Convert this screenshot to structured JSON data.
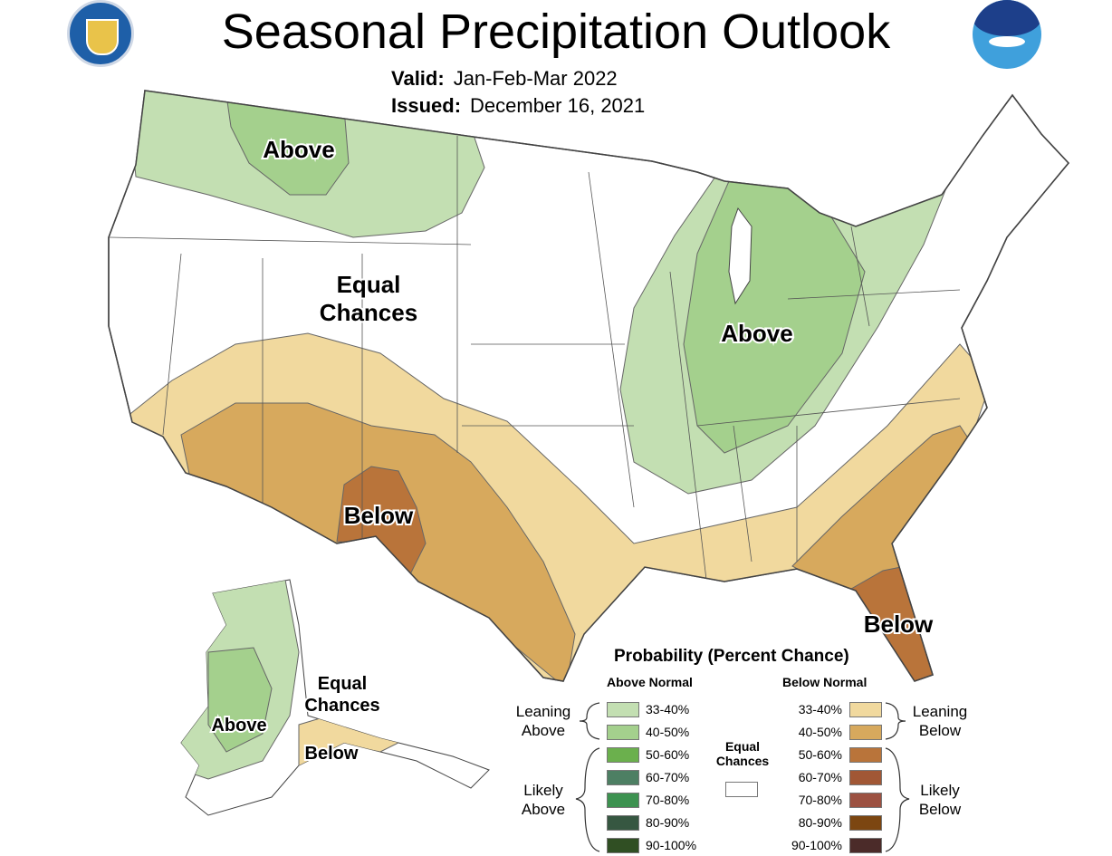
{
  "header": {
    "title": "Seasonal Precipitation Outlook",
    "valid_label": "Valid:",
    "valid_value": "Jan-Feb-Mar 2022",
    "issued_label": "Issued:",
    "issued_value": "December 16, 2021",
    "logos": [
      "Department of Commerce seal",
      "NOAA logo"
    ]
  },
  "map_labels": {
    "northwest": "Above",
    "west_equal_1": "Equal",
    "west_equal_2": "Chances",
    "midwest": "Above",
    "southwest": "Below",
    "florida": "Below",
    "alaska_above": "Above",
    "alaska_equal_1": "Equal",
    "alaska_equal_2": "Chances",
    "alaska_below": "Below"
  },
  "legend": {
    "title": "Probability (Percent Chance)",
    "above_header": "Above Normal",
    "below_header": "Below Normal",
    "equal_1": "Equal",
    "equal_2": "Chances",
    "equal_color": "#ffffff",
    "leaning_above_1": "Leaning",
    "leaning_above_2": "Above",
    "likely_above_1": "Likely",
    "likely_above_2": "Above",
    "leaning_below_1": "Leaning",
    "leaning_below_2": "Below",
    "likely_below_1": "Likely",
    "likely_below_2": "Below",
    "above": [
      {
        "range": "33-40%",
        "color": "#c3dfb2"
      },
      {
        "range": "40-50%",
        "color": "#a4d08d"
      },
      {
        "range": "50-60%",
        "color": "#6bb04d"
      },
      {
        "range": "60-70%",
        "color": "#4d7f63"
      },
      {
        "range": "70-80%",
        "color": "#3d9250"
      },
      {
        "range": "80-90%",
        "color": "#365741"
      },
      {
        "range": "90-100%",
        "color": "#304f23"
      }
    ],
    "below": [
      {
        "range": "33-40%",
        "color": "#f1d99e"
      },
      {
        "range": "40-50%",
        "color": "#d7a95d"
      },
      {
        "range": "50-60%",
        "color": "#b9743a"
      },
      {
        "range": "60-70%",
        "color": "#a15735"
      },
      {
        "range": "70-80%",
        "color": "#9c5141"
      },
      {
        "range": "80-90%",
        "color": "#7c4611"
      },
      {
        "range": "90-100%",
        "color": "#4b2b29"
      }
    ]
  }
}
